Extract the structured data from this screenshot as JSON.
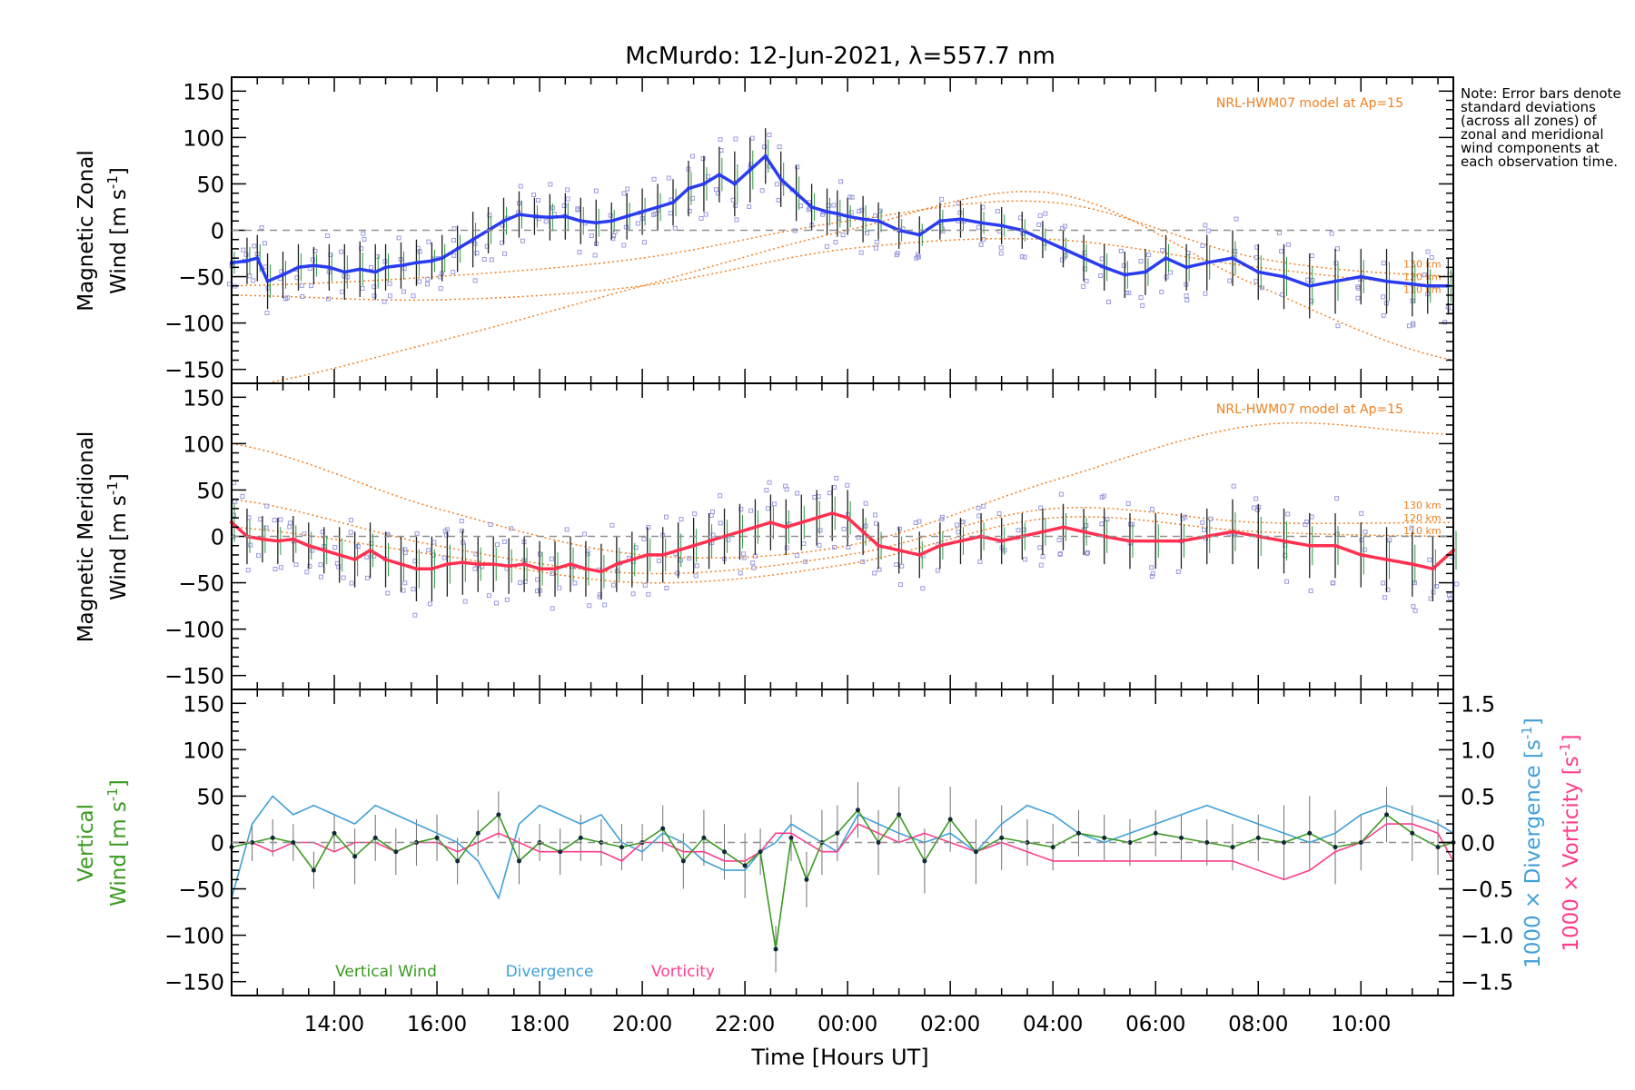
{
  "title": "McMurdo: 12-Jun-2021, λ=557.7 nm",
  "note": "Note: Error bars denote standard deviations (across all zones) of zonal and meridional wind components at each observation time.",
  "colors": {
    "zonal": "#2a3cf0",
    "meridional": "#ff3050",
    "vertical": "#3a9a20",
    "divergence": "#40a0d8",
    "vorticity": "#ff3c8c",
    "model": "#f08020",
    "scatter": "#9a9ae0",
    "errorbar": "#202020",
    "zero_line": "#909090"
  },
  "chart_data": [
    {
      "panel": "zonal",
      "type": "line",
      "ylabel": "Magnetic Zonal Wind [m s^-1]",
      "ylabel_line1": "Magnetic Zonal",
      "ylabel_line2": "Wind [m s",
      "ylabel_exp": "-1",
      "ylabel_close": "]",
      "ylim": [
        -165,
        165
      ],
      "yticks": [
        -150,
        -100,
        -50,
        0,
        50,
        100,
        150
      ],
      "model_label": "NRL-HWM07 model at Ap=15",
      "model_heights": [
        "130 km",
        "120 km",
        "110 km"
      ],
      "series": {
        "name": "Zonal wind",
        "x": [
          12.0,
          12.3,
          12.5,
          12.7,
          13.0,
          13.3,
          13.6,
          13.9,
          14.2,
          14.5,
          14.8,
          15.0,
          15.3,
          15.6,
          15.9,
          16.1,
          16.4,
          16.7,
          17.0,
          17.3,
          17.6,
          17.9,
          18.2,
          18.5,
          18.8,
          19.1,
          19.4,
          19.7,
          20.0,
          20.3,
          20.6,
          20.9,
          21.2,
          21.5,
          21.8,
          22.1,
          22.4,
          22.7,
          23.0,
          23.3,
          23.6,
          23.8,
          24.0,
          24.3,
          24.6,
          25.0,
          25.4,
          25.8,
          26.2,
          26.6,
          27.0,
          27.4,
          27.8,
          28.2,
          28.6,
          29.0,
          29.4,
          29.8,
          30.2,
          30.6,
          31.0,
          31.5,
          32.0,
          32.5,
          33.0,
          33.5,
          34.0,
          34.5,
          35.0,
          35.3,
          35.7
        ],
        "values": [
          -35,
          -33,
          -30,
          -55,
          -48,
          -40,
          -38,
          -40,
          -45,
          -42,
          -45,
          -40,
          -38,
          -35,
          -33,
          -30,
          -20,
          -10,
          0,
          10,
          17,
          15,
          14,
          15,
          10,
          8,
          10,
          15,
          20,
          25,
          30,
          45,
          50,
          60,
          50,
          65,
          80,
          55,
          40,
          25,
          20,
          18,
          15,
          12,
          10,
          0,
          -5,
          10,
          12,
          8,
          5,
          0,
          -10,
          -20,
          -30,
          -40,
          -48,
          -45,
          -30,
          -40,
          -35,
          -30,
          -45,
          -50,
          -60,
          -55,
          -50,
          -55,
          -58,
          -60,
          -60
        ],
        "error": [
          20,
          25,
          25,
          30,
          25,
          25,
          20,
          25,
          30,
          30,
          30,
          25,
          25,
          25,
          20,
          25,
          25,
          30,
          25,
          25,
          25,
          20,
          25,
          25,
          25,
          25,
          20,
          25,
          25,
          25,
          25,
          30,
          30,
          30,
          35,
          35,
          30,
          30,
          30,
          25,
          25,
          25,
          20,
          25,
          20,
          20,
          20,
          20,
          20,
          20,
          20,
          20,
          20,
          20,
          25,
          25,
          25,
          25,
          25,
          25,
          30,
          30,
          30,
          35,
          35,
          35,
          30,
          35,
          35,
          30,
          30
        ]
      },
      "models": [
        {
          "height": "130 km",
          "x": [
            12,
            16,
            20,
            24,
            28,
            32,
            35.8
          ],
          "values": [
            -170,
            -120,
            -60,
            0,
            40,
            -60,
            -140
          ]
        },
        {
          "height": "120 km",
          "x": [
            12,
            16,
            20,
            24,
            28,
            32,
            35.8
          ],
          "values": [
            -60,
            -50,
            -30,
            10,
            30,
            -30,
            -50
          ]
        },
        {
          "height": "110 km",
          "x": [
            12,
            16,
            20,
            24,
            28,
            32,
            35.8
          ],
          "values": [
            -70,
            -75,
            -60,
            -20,
            -10,
            -40,
            -60
          ]
        }
      ]
    },
    {
      "panel": "meridional",
      "type": "line",
      "ylabel": "Magnetic Meridional Wind [m s^-1]",
      "ylabel_line1": "Magnetic Meridional",
      "ylabel_line2": "Wind [m s",
      "ylabel_exp": "-1",
      "ylabel_close": "]",
      "ylim": [
        -165,
        165
      ],
      "yticks": [
        -150,
        -100,
        -50,
        0,
        50,
        100,
        150
      ],
      "model_label": "NRL-HWM07 model at Ap=15",
      "model_heights": [
        "130 km",
        "120 km",
        "110 km"
      ],
      "series": {
        "name": "Meridional wind",
        "x": [
          12.0,
          12.3,
          12.6,
          12.9,
          13.2,
          13.5,
          13.8,
          14.1,
          14.4,
          14.7,
          15.0,
          15.3,
          15.6,
          15.9,
          16.2,
          16.5,
          16.8,
          17.1,
          17.4,
          17.7,
          18.0,
          18.3,
          18.6,
          18.9,
          19.2,
          19.5,
          19.8,
          20.1,
          20.4,
          20.7,
          21.0,
          21.3,
          21.6,
          21.9,
          22.2,
          22.5,
          22.8,
          23.1,
          23.4,
          23.7,
          24.0,
          24.3,
          24.6,
          25.0,
          25.4,
          25.8,
          26.2,
          26.6,
          27.0,
          27.4,
          27.8,
          28.2,
          28.6,
          29.0,
          29.5,
          30.0,
          30.5,
          31.0,
          31.5,
          32.0,
          32.5,
          33.0,
          33.5,
          34.0,
          34.5,
          35.0,
          35.4,
          35.8
        ],
        "values": [
          15,
          0,
          -3,
          -5,
          -3,
          -10,
          -15,
          -20,
          -25,
          -15,
          -25,
          -30,
          -35,
          -35,
          -30,
          -28,
          -30,
          -30,
          -32,
          -30,
          -35,
          -35,
          -30,
          -35,
          -38,
          -30,
          -25,
          -20,
          -20,
          -15,
          -10,
          -5,
          0,
          5,
          10,
          15,
          10,
          15,
          20,
          25,
          20,
          5,
          -10,
          -15,
          -20,
          -10,
          -5,
          0,
          -5,
          0,
          5,
          10,
          5,
          0,
          -5,
          -5,
          -5,
          0,
          5,
          0,
          -5,
          -10,
          -10,
          -20,
          -25,
          -30,
          -35,
          -15
        ],
        "error": [
          35,
          30,
          25,
          25,
          25,
          25,
          25,
          30,
          30,
          30,
          30,
          30,
          35,
          35,
          35,
          35,
          30,
          30,
          30,
          30,
          30,
          30,
          30,
          30,
          30,
          30,
          30,
          30,
          30,
          30,
          30,
          30,
          30,
          30,
          30,
          30,
          30,
          30,
          30,
          30,
          30,
          25,
          25,
          25,
          25,
          25,
          25,
          25,
          25,
          25,
          25,
          25,
          25,
          30,
          30,
          30,
          30,
          30,
          35,
          35,
          35,
          35,
          35,
          35,
          35,
          35,
          35,
          35
        ]
      },
      "models": [
        {
          "height": "130 km",
          "x": [
            12,
            16,
            20,
            24,
            28,
            32,
            35.8
          ],
          "values": [
            100,
            30,
            -20,
            -10,
            60,
            120,
            110
          ]
        },
        {
          "height": "120 km",
          "x": [
            12,
            16,
            20,
            24,
            28,
            32,
            35.8
          ],
          "values": [
            40,
            -10,
            -40,
            -20,
            30,
            15,
            15
          ]
        },
        {
          "height": "110 km",
          "x": [
            12,
            16,
            20,
            24,
            28,
            32,
            35.8
          ],
          "values": [
            10,
            -20,
            -50,
            -30,
            20,
            5,
            0
          ]
        }
      ]
    },
    {
      "panel": "vertical",
      "type": "line",
      "ylabel": "Vertical Wind [m s^-1]",
      "ylabel_line1": "Vertical",
      "ylabel_line2": "Wind [m s",
      "ylabel_exp": "-1",
      "ylabel_close": "]",
      "ylim": [
        -165,
        165
      ],
      "yticks": [
        -150,
        -100,
        -50,
        0,
        50,
        100,
        150
      ],
      "y2label": "1000 × Divergence [s^-1]",
      "y2label_text": "1000 × Divergence [s",
      "y3label": "1000 × Vorticity [s^-1]",
      "y3label_text": "1000 × Vorticity [s",
      "y2lim": [
        -1.65,
        1.65
      ],
      "y2ticks": [
        "1.5",
        "1.0",
        "0.5",
        "0.0",
        "−0.5",
        "−1.0",
        "−1.5"
      ],
      "y2tick_values": [
        1.5,
        1.0,
        0.5,
        0.0,
        -0.5,
        -1.0,
        -1.5
      ],
      "legend": [
        "Vertical Wind",
        "Divergence",
        "Vorticity"
      ],
      "series": [
        {
          "name": "Vertical Wind",
          "x": [
            12.0,
            12.4,
            12.8,
            13.2,
            13.6,
            14.0,
            14.4,
            14.8,
            15.2,
            15.6,
            16.0,
            16.4,
            16.8,
            17.2,
            17.6,
            18.0,
            18.4,
            18.8,
            19.2,
            19.6,
            20.0,
            20.4,
            20.8,
            21.2,
            21.6,
            22.0,
            22.3,
            22.6,
            22.9,
            23.2,
            23.5,
            23.8,
            24.2,
            24.6,
            25.0,
            25.5,
            26.0,
            26.5,
            27.0,
            27.5,
            28.0,
            28.5,
            29.0,
            29.5,
            30.0,
            30.5,
            31.0,
            31.5,
            32.0,
            32.5,
            33.0,
            33.5,
            34.0,
            34.5,
            35.0,
            35.5,
            35.8
          ],
          "values": [
            -5,
            0,
            5,
            0,
            -30,
            10,
            -15,
            5,
            -10,
            0,
            5,
            -20,
            10,
            30,
            -20,
            0,
            -10,
            5,
            0,
            -5,
            0,
            15,
            -20,
            5,
            -10,
            -25,
            -10,
            -115,
            5,
            -40,
            0,
            10,
            35,
            0,
            30,
            -20,
            25,
            -10,
            5,
            0,
            -5,
            10,
            5,
            0,
            10,
            5,
            0,
            -5,
            5,
            0,
            10,
            -5,
            0,
            30,
            10,
            -5,
            0
          ],
          "error": [
            20,
            20,
            20,
            20,
            20,
            20,
            30,
            25,
            25,
            25,
            25,
            25,
            25,
            25,
            25,
            20,
            25,
            25,
            25,
            25,
            20,
            25,
            30,
            30,
            30,
            35,
            25,
            25,
            25,
            30,
            35,
            30,
            30,
            35,
            30,
            35,
            35,
            35,
            35,
            25,
            25,
            25,
            25,
            25,
            25,
            25,
            25,
            25,
            25,
            40,
            40,
            40,
            30,
            30,
            30,
            30,
            30
          ]
        },
        {
          "name": "Divergence",
          "x": [
            12.0,
            12.4,
            12.8,
            13.2,
            13.6,
            14.0,
            14.4,
            14.8,
            15.2,
            15.6,
            16.0,
            16.4,
            16.8,
            17.2,
            17.6,
            18.0,
            18.4,
            18.8,
            19.2,
            19.6,
            20.0,
            20.4,
            20.8,
            21.2,
            21.6,
            22.0,
            22.3,
            22.6,
            22.9,
            23.2,
            23.5,
            23.8,
            24.2,
            24.6,
            25.0,
            25.5,
            26.0,
            26.5,
            27.0,
            27.5,
            28.0,
            28.5,
            29.0,
            29.5,
            30.0,
            30.5,
            31.0,
            31.5,
            32.0,
            32.5,
            33.0,
            33.5,
            34.0,
            34.5,
            35.0,
            35.5,
            35.8
          ],
          "values": [
            -0.6,
            0.2,
            0.5,
            0.3,
            0.4,
            0.3,
            0.2,
            0.4,
            0.3,
            0.2,
            0.1,
            0.0,
            -0.2,
            -0.6,
            0.2,
            0.4,
            0.3,
            0.2,
            0.3,
            0.0,
            -0.1,
            0.1,
            0.0,
            -0.2,
            -0.3,
            -0.3,
            -0.1,
            0.0,
            0.2,
            0.1,
            0.0,
            -0.1,
            0.3,
            0.2,
            0.1,
            0.0,
            0.1,
            -0.1,
            0.2,
            0.4,
            0.3,
            0.1,
            0.0,
            0.1,
            0.2,
            0.3,
            0.4,
            0.3,
            0.2,
            0.1,
            0.0,
            0.1,
            0.3,
            0.4,
            0.3,
            0.2,
            0.1
          ]
        },
        {
          "name": "Vorticity",
          "x": [
            12.0,
            12.4,
            12.8,
            13.2,
            13.6,
            14.0,
            14.4,
            14.8,
            15.2,
            15.6,
            16.0,
            16.4,
            16.8,
            17.2,
            17.6,
            18.0,
            18.4,
            18.8,
            19.2,
            19.6,
            20.0,
            20.4,
            20.8,
            21.2,
            21.6,
            22.0,
            22.3,
            22.6,
            22.9,
            23.2,
            23.5,
            23.8,
            24.2,
            24.6,
            25.0,
            25.5,
            26.0,
            26.5,
            27.0,
            27.5,
            28.0,
            28.5,
            29.0,
            29.5,
            30.0,
            30.5,
            31.0,
            31.5,
            32.0,
            32.5,
            33.0,
            33.5,
            34.0,
            34.5,
            35.0,
            35.5,
            35.8
          ],
          "values": [
            0.0,
            0.0,
            -0.1,
            0.0,
            0.0,
            -0.1,
            0.0,
            0.0,
            -0.1,
            0.0,
            0.0,
            -0.1,
            0.0,
            0.1,
            0.0,
            -0.1,
            -0.1,
            -0.1,
            -0.1,
            -0.2,
            0.0,
            0.0,
            -0.1,
            -0.1,
            -0.2,
            -0.2,
            -0.1,
            0.1,
            0.1,
            0.0,
            -0.1,
            -0.1,
            0.2,
            0.1,
            0.0,
            0.1,
            0.0,
            -0.1,
            0.0,
            -0.1,
            -0.2,
            -0.2,
            -0.2,
            -0.2,
            -0.2,
            -0.2,
            -0.2,
            -0.2,
            -0.3,
            -0.4,
            -0.3,
            -0.1,
            0.0,
            0.2,
            0.2,
            0.1,
            -0.2
          ]
        }
      ]
    }
  ],
  "x_axis": {
    "label": "Time [Hours UT]",
    "range_hours": [
      12.0,
      35.8
    ],
    "tick_hours": [
      14,
      16,
      18,
      20,
      22,
      24,
      26,
      28,
      30,
      32,
      34
    ],
    "tick_labels": [
      "14:00",
      "16:00",
      "18:00",
      "20:00",
      "22:00",
      "00:00",
      "02:00",
      "04:00",
      "06:00",
      "08:00",
      "10:00"
    ]
  }
}
